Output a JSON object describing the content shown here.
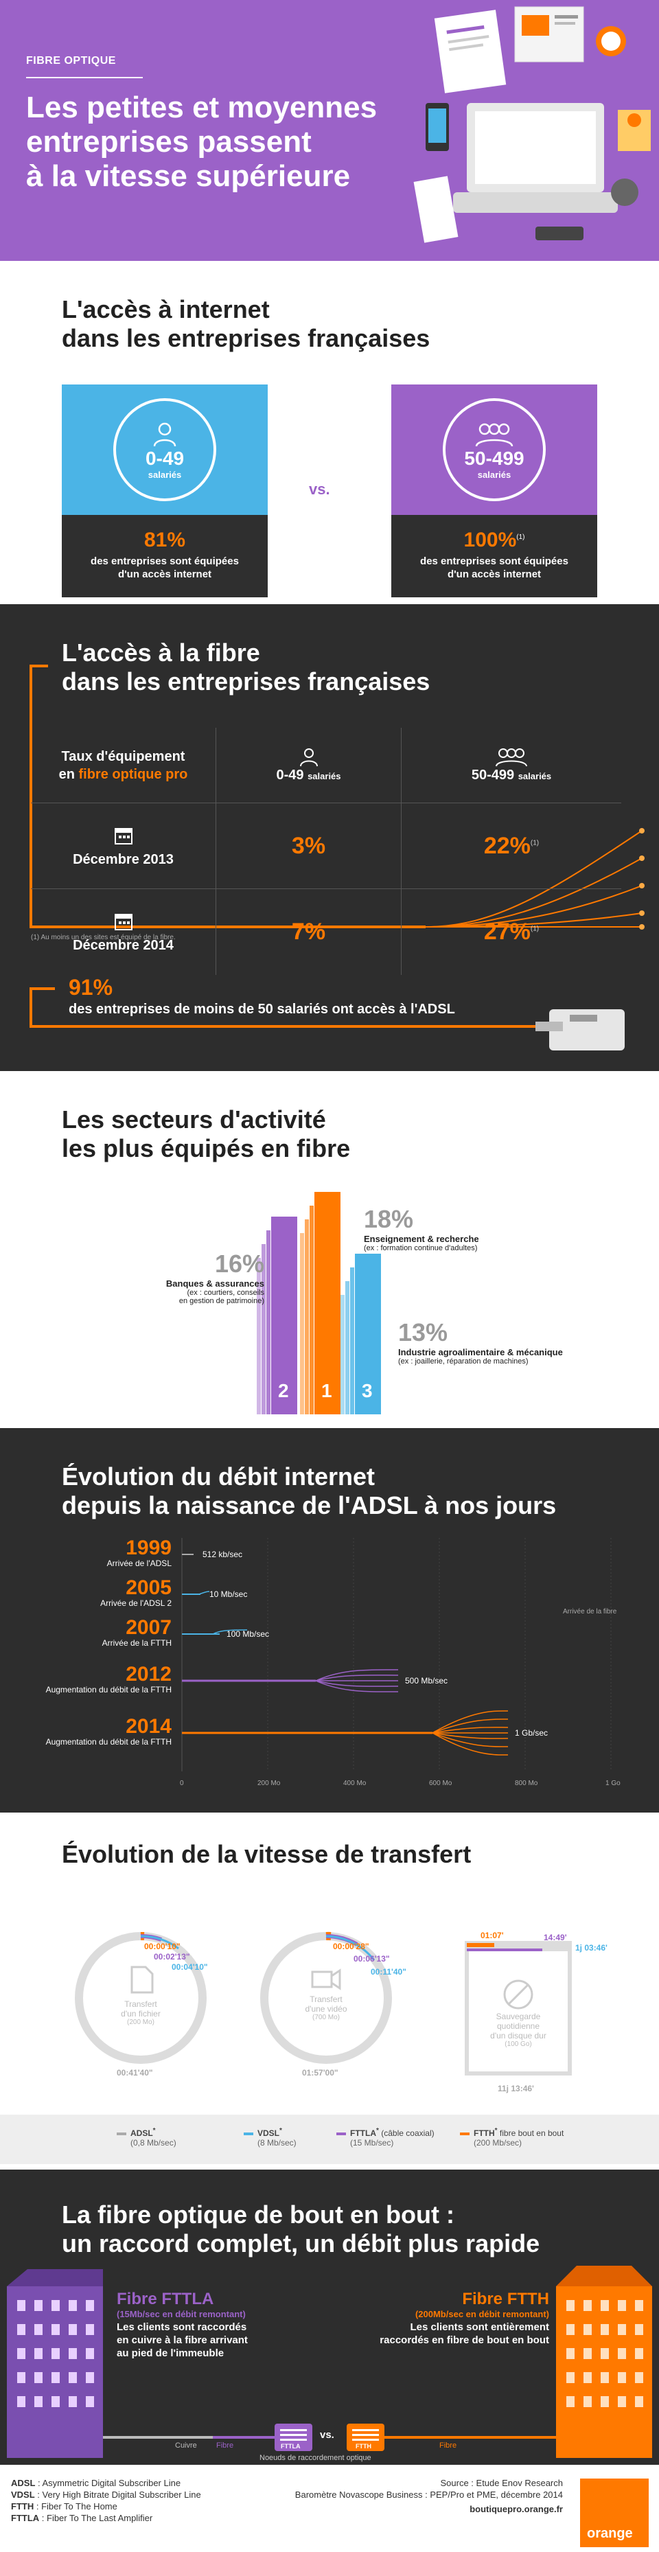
{
  "header": {
    "tag": "FIBRE OPTIQUE",
    "title_lines": [
      "Les petites et moyennes",
      "entreprises passent",
      "à la vitesse supérieure"
    ]
  },
  "access": {
    "title_lines": [
      "L'accès à internet",
      "dans les entreprises françaises"
    ],
    "left": {
      "count": "0-49",
      "unit": "salariés",
      "pct": "81%",
      "desc_lines": [
        "des entreprises sont équipées",
        "d'un accès internet"
      ]
    },
    "vs": "vs.",
    "right": {
      "count": "50-499",
      "unit": "salariés",
      "pct": "100%",
      "note": "(1)",
      "desc_lines": [
        "des entreprises sont équipées",
        "d'un accès internet"
      ]
    }
  },
  "fibre": {
    "title_lines": [
      "L'accès à la fibre",
      "dans les entreprises françaises"
    ],
    "header_label_lines": [
      "Taux d'équipement",
      "en"
    ],
    "header_label_highlight": "fibre optique pro",
    "col1": {
      "count": "0-49",
      "unit": "salariés"
    },
    "col2": {
      "count": "50-499",
      "unit": "salariés"
    },
    "rows": [
      {
        "label": "Décembre 2013",
        "v1": "3%",
        "v2": "22%",
        "note": "(1)"
      },
      {
        "label": "Décembre 2014",
        "v1": "7%",
        "v2": "27%",
        "note": "(1)"
      }
    ],
    "footnote": "(1) Au moins un des sites est équipé de la fibre.",
    "adsl_pct": "91%",
    "adsl_desc": "des entreprises de moins de 50 salariés ont accès à l'ADSL"
  },
  "sectors": {
    "title_lines": [
      "Les secteurs d'activité",
      "les plus équipés en fibre"
    ],
    "items": [
      {
        "rank": "2",
        "pct": "16%",
        "label": "Banques & assurances",
        "sub_lines": [
          "(ex : courtiers, conseils",
          "en gestion de patrimoine)"
        ],
        "color": "#9b62c8"
      },
      {
        "rank": "1",
        "pct": "18%",
        "label": "Enseignement & recherche",
        "sub_lines": [
          "(ex : formation continue d'adultes)"
        ],
        "color": "#ff7900"
      },
      {
        "rank": "3",
        "pct": "13%",
        "label": "Industrie agroalimentaire & mécanique",
        "sub_lines": [
          "(ex : joaillerie, réparation de machines)"
        ],
        "color": "#4bb4e6"
      }
    ]
  },
  "debit": {
    "title_lines": [
      "Évolution du débit internet",
      "depuis la naissance de l'ADSL à nos jours"
    ],
    "fibre_label": "Arrivée de la fibre",
    "rows": [
      {
        "year": "1999",
        "label": "Arrivée de l'ADSL",
        "speed": "512 kb/sec"
      },
      {
        "year": "2005",
        "label": "Arrivée de l'ADSL 2",
        "speed": "10 Mb/sec"
      },
      {
        "year": "2007",
        "label": "Arrivée de la FTTH",
        "speed": "100 Mb/sec"
      },
      {
        "year": "2012",
        "label": "Augmentation du débit de la FTTH",
        "speed": "500 Mb/sec"
      },
      {
        "year": "2014",
        "label": "Augmentation du débit de la FTTH",
        "speed": "1 Gb/sec"
      }
    ],
    "axis": [
      "0",
      "200 Mo",
      "400 Mo",
      "600 Mo",
      "800 Mo",
      "1 Go"
    ]
  },
  "transfert": {
    "title": "Évolution de la vitesse de transfert",
    "items": [
      {
        "times": [
          "00:00'10\"",
          "00:02'13\"",
          "00:04'10\""
        ],
        "label_lines": [
          "Transfert",
          "d'un fichier"
        ],
        "size": "(200 Mo)",
        "total": "00:41'40\""
      },
      {
        "times": [
          "00:00'28\"",
          "00:06'13\"",
          "00:11'40\""
        ],
        "label_lines": [
          "Transfert",
          "d'une vidéo"
        ],
        "size": "(700 Mo)",
        "total": "01:57'00\""
      },
      {
        "times": [
          "01:07'",
          "14:49'",
          "1j 03:46'"
        ],
        "label_lines": [
          "Sauvegarde",
          "quotidienne",
          "d'un disque dur"
        ],
        "size": "(100 Go)",
        "total": "11j 13:46'"
      }
    ],
    "legend": [
      {
        "name": "ADSL",
        "sup": "*",
        "speed": "(0,8 Mb/sec)",
        "color": "#aaaaaa"
      },
      {
        "name": "VDSL",
        "sup": "*",
        "speed": "(8 Mb/sec)",
        "color": "#4bb4e6"
      },
      {
        "name": "FTTLA",
        "sup": "*",
        "extra": "(câble coaxial)",
        "speed": "(15 Mb/sec)",
        "color": "#9b62c8"
      },
      {
        "name": "FTTH",
        "sup": "*",
        "extra": "fibre bout en bout",
        "speed": "(200 Mb/sec)",
        "color": "#ff7900"
      }
    ]
  },
  "bout": {
    "title_lines": [
      "La fibre optique de bout en bout :",
      "un raccord complet, un débit plus rapide"
    ],
    "fttla": {
      "name": "Fibre FTTLA",
      "sub_lines": [
        "(15Mb/sec en débit remontant)"
      ],
      "desc_lines": [
        "Les clients sont raccordés",
        "en cuivre à la fibre arrivant",
        "au pied de l'immeuble"
      ]
    },
    "ftth": {
      "name": "Fibre FTTH",
      "sub_lines": [
        "(200Mb/sec en débit remontant)"
      ],
      "desc_lines": [
        "Les clients sont entièrement",
        "raccordés en fibre de bout en bout"
      ]
    },
    "cuivre": "Cuivre",
    "fibre_left": "Fibre",
    "fibre_right": "Fibre",
    "vs": "vs.",
    "box_left": "FTTLA",
    "box_right": "FTTH",
    "noeuds": "Noeuds de raccordement optique"
  },
  "footer": {
    "defs": [
      {
        "term": "ADSL",
        "def": "Asymmetric Digital Subscriber Line"
      },
      {
        "term": "VDSL",
        "def": "Very High Bitrate Digital Subscriber Line"
      },
      {
        "term": "FTTH",
        "def": "Fiber To The Home"
      },
      {
        "term": "FTTLA",
        "def": "Fiber To The Last Amplifier"
      }
    ],
    "source_lines": [
      "Source : Etude Enov Research",
      "Baromètre Novascope Business : PEP/Pro et PME, décembre 2014"
    ],
    "url": "boutiquepro.orange.fr",
    "brand": "orange"
  }
}
